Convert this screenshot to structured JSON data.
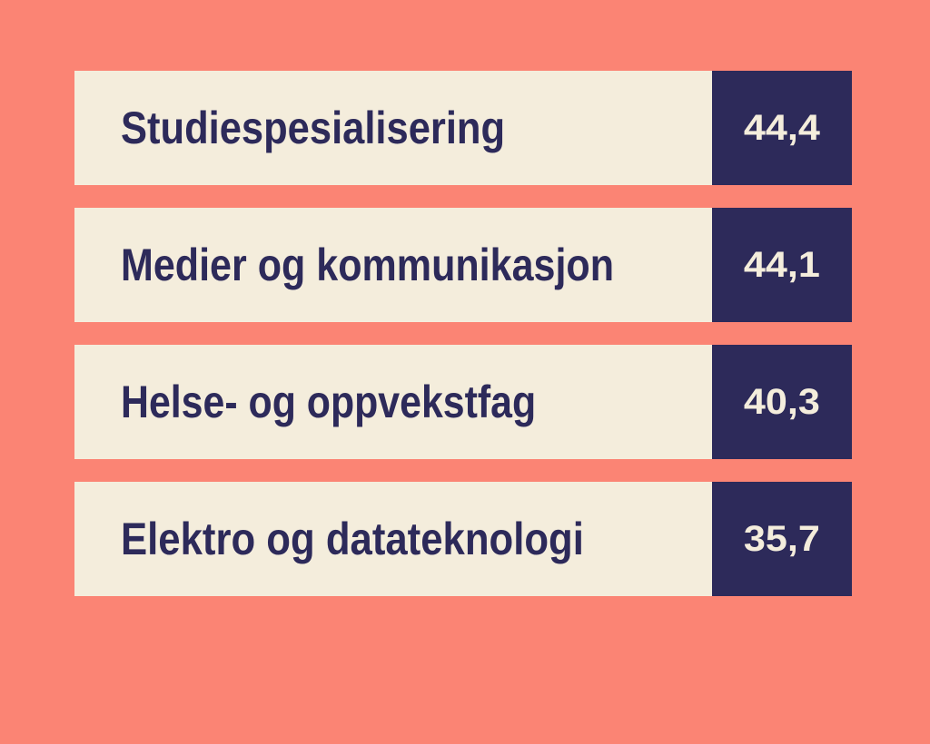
{
  "colors": {
    "background": "#fb8474",
    "label_background": "#f4eddc",
    "value_background": "#2d2a5a",
    "label_text": "#2d2a5a",
    "value_text": "#f4eddc"
  },
  "chart_data": {
    "type": "bar",
    "categories": [
      "Studiespesialisering",
      "Medier og kommunikasjon",
      "Helse- og oppvekstfag",
      "Elektro og datateknologi"
    ],
    "values": [
      44.4,
      44.1,
      40.3,
      35.7
    ],
    "value_labels": [
      "44,4",
      "44,1",
      "40,3",
      "35,7"
    ],
    "title": "",
    "xlabel": "",
    "ylabel": "",
    "legend": false,
    "grid": false
  },
  "rows": [
    {
      "label": "Studiespesialisering",
      "value": "44,4"
    },
    {
      "label": "Medier og kommunikasjon",
      "value": "44,1"
    },
    {
      "label": "Helse- og oppvekstfag",
      "value": "40,3"
    },
    {
      "label": "Elektro og datateknologi",
      "value": "35,7"
    }
  ]
}
